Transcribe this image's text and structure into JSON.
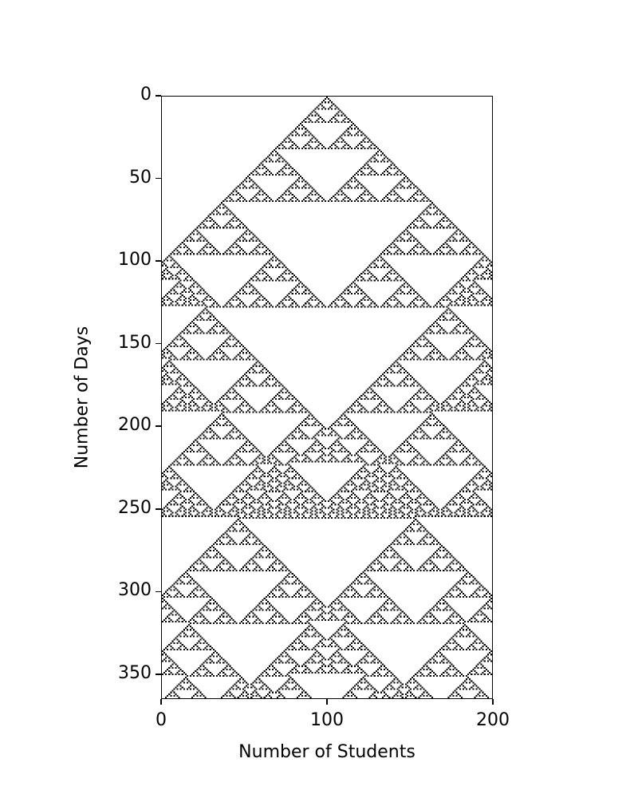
{
  "chart_data": {
    "type": "heatmap",
    "title": "",
    "xlabel": "Number of Students",
    "ylabel": "Number of Days",
    "xlim": [
      0,
      200
    ],
    "ylim": [
      0,
      365
    ],
    "y_inverted": true,
    "xticks": [
      "0",
      "100",
      "200"
    ],
    "yticks": [
      "0",
      "50",
      "100",
      "150",
      "200",
      "250",
      "300",
      "350"
    ],
    "grid": false,
    "colormap": "binary",
    "colors": {
      "on": "#000000",
      "off": "#ffffff"
    },
    "pattern": "elementary cellular automaton rule 90",
    "num_students": 201,
    "num_days": 365,
    "initial_active_student": 100
  }
}
